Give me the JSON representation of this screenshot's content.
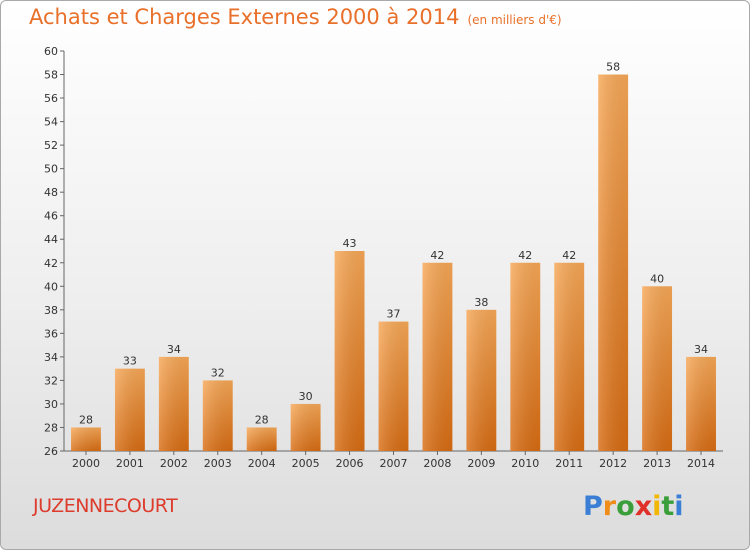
{
  "title": "Achats et Charges Externes 2000 à 2014",
  "subtitle": "(en milliers d'€)",
  "city": "JUZENNECOURT",
  "logo": {
    "letters": [
      "P",
      "r",
      "o",
      "x",
      "i",
      "t",
      "i"
    ],
    "colors": [
      "#3a7fd5",
      "#f08c1a",
      "#3a9f3a",
      "#e0302a",
      "#f2b705",
      "#3a9f3a",
      "#3a7fd5"
    ]
  },
  "chart_data": {
    "type": "bar",
    "title": "Achats et Charges Externes 2000 à 2014",
    "subtitle": "(en milliers d'€)",
    "categories": [
      "2000",
      "2001",
      "2002",
      "2003",
      "2004",
      "2005",
      "2006",
      "2007",
      "2008",
      "2009",
      "2010",
      "2011",
      "2012",
      "2013",
      "2014"
    ],
    "values": [
      28,
      33,
      34,
      32,
      28,
      30,
      43,
      37,
      42,
      38,
      42,
      42,
      58,
      40,
      34
    ],
    "ylim": [
      26,
      60
    ],
    "yticks": [
      26,
      28,
      30,
      32,
      34,
      36,
      38,
      40,
      42,
      44,
      46,
      48,
      50,
      52,
      54,
      56,
      58,
      60
    ],
    "grid": false,
    "bar_color": "#f08c1a",
    "xlabel": "",
    "ylabel": ""
  }
}
